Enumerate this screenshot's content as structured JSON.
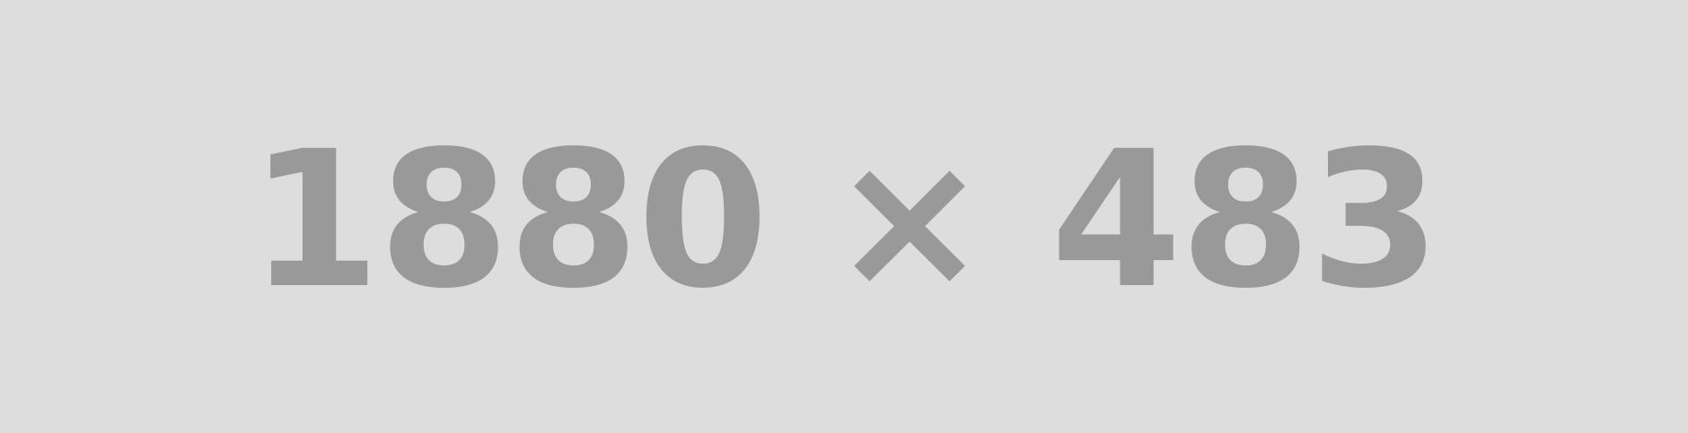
{
  "placeholder": {
    "text": "1880 × 483",
    "background_color": "#dddddd",
    "text_color": "#999999"
  }
}
